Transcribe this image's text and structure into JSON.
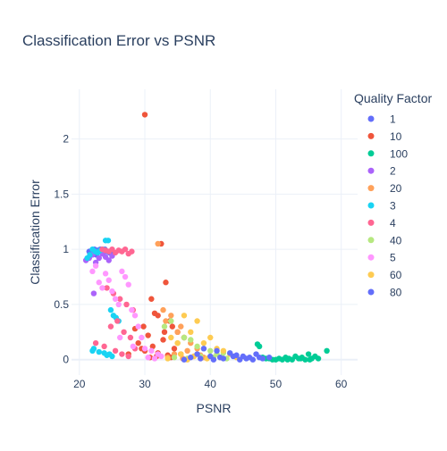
{
  "chart_data": {
    "type": "scatter",
    "title": "Classification Error vs PSNR",
    "xlabel": "PSNR",
    "ylabel": "Classification Error",
    "xlim": [
      18.8,
      62.5
    ],
    "ylim": [
      -0.14,
      2.45
    ],
    "xticks": [
      20,
      30,
      40,
      50,
      60
    ],
    "yticks": [
      0,
      0.5,
      1,
      1.5,
      2
    ],
    "xtick_labels": [
      "20",
      "30",
      "40",
      "50",
      "60"
    ],
    "ytick_labels": [
      "0",
      "0.5",
      "1",
      "1.5",
      "2"
    ],
    "grid": true,
    "legend": {
      "title": "Quality Factor",
      "placement": "right"
    },
    "series": [
      {
        "name": "1",
        "color": "#636efa",
        "x": [
          21.5,
          22.0,
          22.3,
          22.8,
          23.2,
          23.6,
          24.0,
          24.3,
          24.6,
          25.0,
          22.6,
          23.9,
          24.8
        ],
        "y": [
          0.98,
          0.97,
          1.0,
          0.99,
          1.0,
          0.96,
          0.99,
          0.98,
          0.97,
          0.97,
          0.95,
          1.0,
          0.98
        ]
      },
      {
        "name": "10",
        "color": "#EF553B",
        "x": [
          30.0,
          32.5,
          33.2,
          31.0,
          32.0,
          33.8,
          34.2,
          35.0,
          36.0,
          31.5,
          32.8,
          29.8,
          30.5,
          31.2,
          33.0,
          34.5,
          35.5,
          28.5,
          29.0,
          30.0,
          32.0,
          33.5,
          31.8,
          30.8,
          34.0,
          27.5,
          29.5
        ],
        "y": [
          2.22,
          1.05,
          0.7,
          0.55,
          0.4,
          0.35,
          0.3,
          0.25,
          0.2,
          0.42,
          0.18,
          0.3,
          0.22,
          0.12,
          0.25,
          0.1,
          0.05,
          0.28,
          0.15,
          0.08,
          0.06,
          0.04,
          0.03,
          0.02,
          0.02,
          0.05,
          0.1
        ]
      },
      {
        "name": "100",
        "color": "#00cc96",
        "x": [
          47.2,
          47.5,
          48.0,
          49.0,
          50.0,
          50.5,
          51.0,
          51.5,
          52.0,
          52.5,
          53.0,
          53.5,
          54.0,
          54.5,
          55.0,
          55.5,
          56.0,
          56.5,
          57.8,
          49.5,
          51.8,
          53.8,
          55.2,
          48.5
        ],
        "y": [
          0.14,
          0.12,
          0.02,
          0.01,
          0.0,
          0.01,
          0.0,
          0.02,
          0.01,
          0.0,
          0.03,
          0.01,
          0.02,
          0.0,
          0.05,
          0.01,
          0.03,
          0.01,
          0.08,
          0.0,
          0.0,
          0.01,
          0.0,
          0.01
        ]
      },
      {
        "name": "2",
        "color": "#ab63fa",
        "x": [
          21.0,
          21.5,
          22.0,
          22.5,
          23.5,
          24.0,
          24.5,
          25.0,
          23.0,
          22.2
        ],
        "y": [
          0.9,
          0.92,
          0.95,
          0.88,
          0.96,
          0.93,
          0.9,
          0.94,
          0.92,
          0.6
        ]
      },
      {
        "name": "20",
        "color": "#FFA15A",
        "x": [
          32.0,
          32.8,
          33.2,
          34.0,
          35.0,
          35.5,
          36.0,
          37.0,
          38.0,
          34.5,
          36.5,
          33.5,
          37.5,
          35.8,
          38.5,
          39.0
        ],
        "y": [
          1.05,
          0.45,
          0.35,
          0.4,
          0.25,
          0.3,
          0.2,
          0.15,
          0.1,
          0.05,
          0.08,
          0.02,
          0.03,
          0.01,
          0.04,
          0.02
        ]
      },
      {
        "name": "3",
        "color": "#19d3f3",
        "x": [
          21.2,
          21.6,
          22.0,
          22.4,
          22.8,
          23.2,
          23.6,
          24.0,
          24.4,
          24.8,
          25.2,
          25.6,
          26.0,
          22.2,
          23.8,
          24.2,
          24.6,
          22.0,
          23.0,
          25.0
        ],
        "y": [
          0.92,
          0.95,
          1.0,
          0.98,
          0.97,
          0.99,
          1.0,
          1.08,
          1.08,
          0.45,
          0.4,
          0.38,
          0.35,
          0.1,
          0.06,
          0.04,
          0.05,
          0.08,
          0.07,
          0.03
        ]
      },
      {
        "name": "4",
        "color": "#FF6692",
        "x": [
          23.5,
          24.0,
          24.5,
          25.0,
          25.5,
          26.0,
          26.5,
          27.0,
          27.5,
          28.0,
          24.2,
          25.2,
          26.2,
          27.2,
          28.2,
          25.8,
          24.8,
          26.8,
          27.8,
          22.5,
          28.5,
          23.8,
          25.5,
          26.5,
          27.5
        ],
        "y": [
          1.0,
          0.99,
          0.98,
          1.0,
          0.97,
          0.99,
          0.98,
          1.0,
          0.96,
          0.98,
          0.65,
          0.6,
          0.55,
          0.5,
          0.45,
          0.35,
          0.3,
          0.25,
          0.2,
          0.15,
          0.1,
          0.12,
          0.08,
          0.05,
          0.03
        ]
      },
      {
        "name": "40",
        "color": "#B6E880",
        "x": [
          33.0,
          34.0,
          35.0,
          36.0,
          37.0,
          38.0,
          39.0,
          40.0,
          41.0,
          42.0,
          38.5,
          40.5,
          36.5,
          34.5,
          42.5
        ],
        "y": [
          0.3,
          0.35,
          0.15,
          0.2,
          0.18,
          0.12,
          0.1,
          0.08,
          0.05,
          0.06,
          0.03,
          0.02,
          0.01,
          0.02,
          0.01
        ]
      },
      {
        "name": "5",
        "color": "#FF97FF",
        "x": [
          22.0,
          22.5,
          23.0,
          23.5,
          24.0,
          24.5,
          25.0,
          25.5,
          26.0,
          26.5,
          27.0,
          27.5,
          28.0,
          28.5,
          29.0,
          29.5,
          30.0,
          31.0,
          32.0,
          30.5,
          31.5,
          32.5,
          28.2,
          26.2
        ],
        "y": [
          0.8,
          0.85,
          0.7,
          0.65,
          0.78,
          0.72,
          0.62,
          0.55,
          0.5,
          0.8,
          0.75,
          0.68,
          0.45,
          0.4,
          0.3,
          0.2,
          0.1,
          0.08,
          0.05,
          0.02,
          0.01,
          0.03,
          0.12,
          0.2
        ]
      },
      {
        "name": "60",
        "color": "#FECB52",
        "x": [
          34.0,
          35.0,
          36.0,
          37.0,
          38.0,
          39.0,
          40.0,
          41.0,
          42.0,
          43.0,
          44.0,
          35.5,
          37.5,
          39.5,
          41.5,
          33.5,
          36.5,
          38.5
        ],
        "y": [
          0.2,
          0.15,
          0.4,
          0.25,
          0.35,
          0.15,
          0.2,
          0.1,
          0.08,
          0.05,
          0.02,
          0.05,
          0.03,
          0.01,
          0.02,
          0.01,
          0.0,
          0.01
        ]
      },
      {
        "name": "80",
        "color": "#636efa",
        "x": [
          36.0,
          37.0,
          38.0,
          39.0,
          40.0,
          41.0,
          42.0,
          43.0,
          44.0,
          45.0,
          46.0,
          47.0,
          48.0,
          49.0,
          44.5,
          45.5,
          46.5,
          47.5,
          43.5,
          38.5,
          40.5,
          41.5
        ],
        "y": [
          0.0,
          0.02,
          0.05,
          0.1,
          0.03,
          0.08,
          0.01,
          0.06,
          0.04,
          0.03,
          0.02,
          0.05,
          0.01,
          0.02,
          0.0,
          0.01,
          0.0,
          0.02,
          0.03,
          0.01,
          0.0,
          0.02
        ]
      }
    ]
  }
}
